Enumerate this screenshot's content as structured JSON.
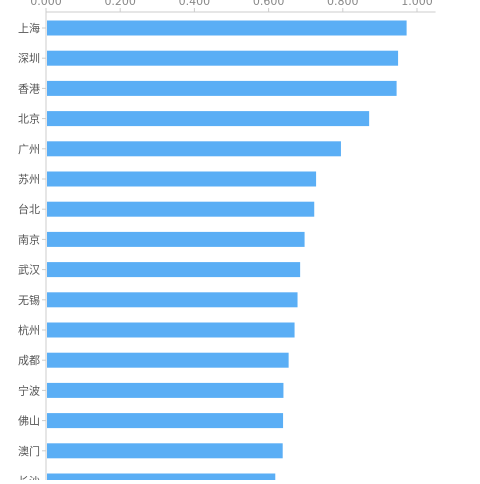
{
  "chart_data": {
    "type": "bar",
    "orientation": "horizontal",
    "categories": [
      "上海",
      "深圳",
      "香港",
      "北京",
      "广州",
      "苏州",
      "台北",
      "南京",
      "武汉",
      "无锡",
      "杭州",
      "成都",
      "宁波",
      "佛山",
      "澳门",
      "长沙"
    ],
    "values": [
      0.972,
      0.949,
      0.945,
      0.871,
      0.795,
      0.728,
      0.723,
      0.697,
      0.685,
      0.678,
      0.67,
      0.654,
      0.64,
      0.639,
      0.638,
      0.618
    ],
    "x_ticks": [
      "0.000",
      "0.200",
      "0.400",
      "0.600",
      "0.800",
      "1.000"
    ],
    "xlim": [
      0,
      1.05
    ],
    "axis_position": "top",
    "grid": false,
    "colors": {
      "bar": "#5aaef5",
      "axis": "#cccccc",
      "label": "#555555"
    }
  }
}
